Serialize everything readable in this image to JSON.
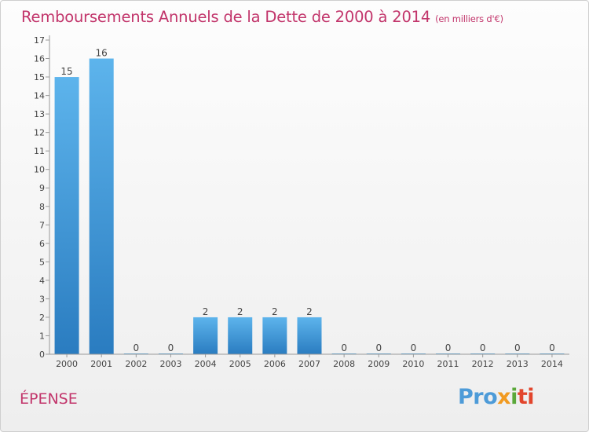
{
  "chart_data": {
    "type": "bar",
    "title": "Remboursements Annuels de la Dette de 2000 à 2014",
    "subtitle": "(en milliers d'€)",
    "categories": [
      "2000",
      "2001",
      "2002",
      "2003",
      "2004",
      "2005",
      "2006",
      "2007",
      "2008",
      "2009",
      "2010",
      "2011",
      "2012",
      "2013",
      "2014"
    ],
    "values": [
      15,
      16,
      0,
      0,
      2,
      2,
      2,
      2,
      0,
      0,
      0,
      0,
      0,
      0,
      0
    ],
    "yticks": [
      0,
      1,
      2,
      3,
      4,
      5,
      6,
      7,
      8,
      9,
      10,
      11,
      12,
      13,
      14,
      15,
      16,
      17
    ],
    "ylim": [
      0,
      17
    ],
    "xlabel": "",
    "ylabel": "",
    "grid": false,
    "colors": {
      "bar_top": "#5db4ec",
      "bar_bottom": "#2a7cc0",
      "title": "#c2356b"
    }
  },
  "commune": "ÉPENSE",
  "logo": {
    "p1": "Pro",
    "p2": "x",
    "p3": "i",
    "p4": "ti"
  }
}
